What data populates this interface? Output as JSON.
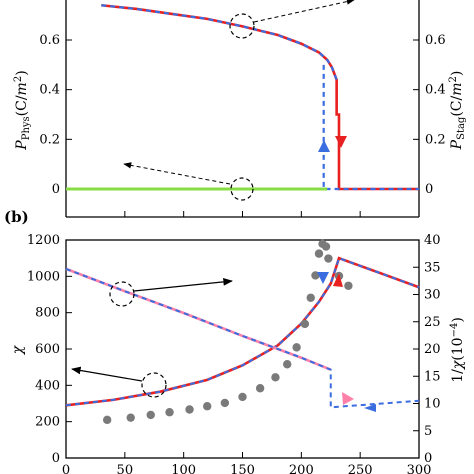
{
  "chart_data": [
    {
      "type": "line",
      "xlim": [
        0,
        300
      ],
      "ylim": [
        0,
        0.75
      ],
      "y2lim": [
        0,
        0.75
      ],
      "ylabel": "P_Phys(C/m²)",
      "y2label": "P_Stag(C/m²)",
      "yticks": [
        "0",
        "0.2",
        "0.4",
        "0.6"
      ],
      "y2ticks": [
        "0",
        "0.2",
        "0.4",
        "0.6"
      ],
      "series": [
        {
          "color": "#e82020",
          "style": "solid",
          "x": [
            30,
            60,
            90,
            120,
            150,
            180,
            200,
            215,
            222,
            226,
            230,
            230,
            232,
            232,
            300
          ],
          "y": [
            0.74,
            0.725,
            0.705,
            0.685,
            0.655,
            0.62,
            0.585,
            0.55,
            0.52,
            0.49,
            0.44,
            0.3,
            0.3,
            0.0,
            0.0
          ]
        },
        {
          "color": "#3a6de0",
          "style": "dashed",
          "x": [
            30,
            60,
            90,
            120,
            150,
            180,
            200,
            215,
            222,
            226,
            230
          ],
          "y": [
            0.74,
            0.725,
            0.705,
            0.685,
            0.655,
            0.62,
            0.585,
            0.55,
            0.52,
            0.49,
            0.44
          ]
        },
        {
          "color": "#3a6de0",
          "style": "dashed",
          "x": [
            219,
            219,
            300
          ],
          "y": [
            0.5,
            0.0,
            0.0
          ]
        },
        {
          "color": "#88dd44",
          "style": "solid",
          "x": [
            0,
            222
          ],
          "y": [
            0.0,
            0.0
          ]
        }
      ]
    },
    {
      "type": "line",
      "panel_label": "(b)",
      "xlim": [
        0,
        300
      ],
      "ylim": [
        0,
        1200
      ],
      "y2lim": [
        0,
        40
      ],
      "ylabel": "χ",
      "y2label": "1/χ(10⁻⁴)",
      "xticks": [
        "0",
        "50",
        "100",
        "150",
        "200",
        "250",
        "300"
      ],
      "yticks": [
        "0",
        "200",
        "400",
        "600",
        "800",
        "1000",
        "1200"
      ],
      "y2ticks": [
        "0",
        "5",
        "10",
        "15",
        "20",
        "25",
        "30",
        "35",
        "40"
      ],
      "series": [
        {
          "color": "#e82020",
          "style": "solid",
          "x": [
            0,
            40,
            80,
            120,
            150,
            180,
            200,
            215,
            225,
            232,
            300
          ],
          "y": [
            290,
            320,
            365,
            430,
            510,
            620,
            740,
            860,
            960,
            1100,
            940
          ]
        },
        {
          "color": "#3a6de0",
          "style": "dashed",
          "x": [
            0,
            40,
            80,
            120,
            150,
            180,
            200,
            215,
            225,
            232,
            300
          ],
          "y": [
            290,
            320,
            365,
            430,
            510,
            620,
            740,
            860,
            960,
            1100,
            940
          ]
        },
        {
          "color": "#ff80a8",
          "style": "solid",
          "axis": "right",
          "x": [
            0,
            50,
            100,
            150,
            200,
            225
          ],
          "y": [
            34.7,
            30.6,
            26.6,
            22.4,
            18.4,
            16.2
          ]
        },
        {
          "color": "#3a6de0",
          "style": "dashed",
          "axis": "right",
          "x": [
            0,
            50,
            100,
            150,
            200,
            225,
            225,
            300
          ],
          "y": [
            34.7,
            30.6,
            26.6,
            22.4,
            18.4,
            16.2,
            9.3,
            10.5
          ]
        },
        {
          "color": "#7a7a7a",
          "style": "scatter",
          "axis": "right",
          "x": [
            35,
            55,
            72,
            88,
            105,
            120,
            135,
            150,
            165,
            178,
            188,
            196,
            203,
            208,
            212,
            215,
            218,
            221,
            223,
            232,
            240
          ],
          "y": [
            7,
            7.4,
            7.9,
            8.4,
            8.9,
            9.5,
            10.1,
            11.2,
            12.8,
            14.8,
            17.2,
            20.3,
            24.6,
            29.4,
            33.5,
            37.5,
            39.3,
            38.8,
            36.6,
            33.4,
            31.6
          ]
        }
      ]
    }
  ]
}
